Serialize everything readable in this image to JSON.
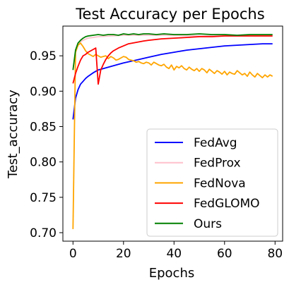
{
  "chart_data": {
    "type": "line",
    "title": "Test Accuracy per Epochs",
    "xlabel": "Epochs",
    "ylabel": "Test_accuracy",
    "xlim": [
      -4,
      83
    ],
    "ylim": [
      0.688,
      0.992
    ],
    "xticks": [
      0,
      20,
      40,
      60,
      80
    ],
    "xtick_labels": [
      "0",
      "20",
      "40",
      "60",
      "80"
    ],
    "yticks": [
      0.7,
      0.75,
      0.8,
      0.85,
      0.9,
      0.95
    ],
    "ytick_labels": [
      "0.70",
      "0.75",
      "0.80",
      "0.85",
      "0.90",
      "0.95"
    ],
    "grid": false,
    "legend_position": "lower-right",
    "series": [
      {
        "name": "FedAvg",
        "color": "#0000ff",
        "x": [
          0,
          1,
          2,
          3,
          4,
          5,
          6,
          8,
          10,
          12,
          15,
          18,
          20,
          25,
          30,
          35,
          40,
          45,
          50,
          55,
          60,
          65,
          70,
          75,
          79
        ],
        "y": [
          0.86,
          0.89,
          0.902,
          0.91,
          0.914,
          0.918,
          0.921,
          0.926,
          0.93,
          0.932,
          0.935,
          0.938,
          0.94,
          0.944,
          0.948,
          0.952,
          0.955,
          0.958,
          0.96,
          0.962,
          0.964,
          0.965,
          0.966,
          0.967,
          0.967
        ]
      },
      {
        "name": "FedProx",
        "color": "#ffc0cb",
        "x": [
          0,
          1,
          2,
          3,
          4,
          6,
          8,
          10,
          15,
          20,
          30,
          40,
          50,
          60,
          70,
          79
        ],
        "y": [
          0.93,
          0.955,
          0.965,
          0.97,
          0.972,
          0.975,
          0.976,
          0.977,
          0.978,
          0.979,
          0.979,
          0.979,
          0.978,
          0.979,
          0.979,
          0.979
        ]
      },
      {
        "name": "FedNova",
        "color": "#ffa500",
        "x": [
          0,
          1,
          2,
          3,
          4,
          5,
          6,
          7,
          8,
          9,
          10,
          11,
          12,
          13,
          14,
          15,
          16,
          17,
          18,
          19,
          20,
          21,
          22,
          23,
          24,
          25,
          26,
          27,
          28,
          29,
          30,
          31,
          32,
          33,
          34,
          35,
          36,
          37,
          38,
          39,
          40,
          41,
          42,
          43,
          44,
          45,
          46,
          47,
          48,
          49,
          50,
          51,
          52,
          53,
          54,
          55,
          56,
          57,
          58,
          59,
          60,
          61,
          62,
          63,
          64,
          65,
          66,
          67,
          68,
          69,
          70,
          71,
          72,
          73,
          74,
          75,
          76,
          77,
          78,
          79
        ],
        "y": [
          0.705,
          0.955,
          0.965,
          0.968,
          0.963,
          0.957,
          0.953,
          0.951,
          0.949,
          0.952,
          0.95,
          0.948,
          0.949,
          0.95,
          0.946,
          0.949,
          0.947,
          0.944,
          0.945,
          0.947,
          0.949,
          0.948,
          0.945,
          0.944,
          0.943,
          0.941,
          0.942,
          0.94,
          0.939,
          0.941,
          0.94,
          0.937,
          0.941,
          0.939,
          0.937,
          0.936,
          0.938,
          0.934,
          0.932,
          0.937,
          0.93,
          0.935,
          0.933,
          0.936,
          0.932,
          0.93,
          0.934,
          0.931,
          0.929,
          0.932,
          0.928,
          0.932,
          0.93,
          0.926,
          0.931,
          0.928,
          0.925,
          0.929,
          0.927,
          0.924,
          0.928,
          0.923,
          0.927,
          0.925,
          0.924,
          0.929,
          0.926,
          0.923,
          0.925,
          0.921,
          0.927,
          0.923,
          0.92,
          0.925,
          0.922,
          0.919,
          0.923,
          0.92,
          0.923,
          0.921
        ]
      },
      {
        "name": "FedGLOMO",
        "color": "#ff0000",
        "x": [
          0,
          1,
          2,
          3,
          4,
          5,
          6,
          7,
          8,
          9,
          10,
          11,
          12,
          13,
          14,
          15,
          16,
          18,
          20,
          22,
          25,
          28,
          30,
          35,
          40,
          45,
          50,
          55,
          60,
          65,
          70,
          75,
          79
        ],
        "y": [
          0.911,
          0.925,
          0.935,
          0.944,
          0.95,
          0.952,
          0.955,
          0.957,
          0.959,
          0.961,
          0.91,
          0.93,
          0.938,
          0.945,
          0.95,
          0.954,
          0.957,
          0.961,
          0.964,
          0.967,
          0.969,
          0.971,
          0.972,
          0.974,
          0.975,
          0.976,
          0.977,
          0.977,
          0.978,
          0.978,
          0.978,
          0.978,
          0.978
        ]
      },
      {
        "name": "Ours",
        "color": "#008000",
        "x": [
          0,
          1,
          2,
          3,
          4,
          5,
          6,
          8,
          10,
          12,
          14,
          16,
          18,
          20,
          22,
          24,
          26,
          28,
          30,
          33,
          36,
          40,
          45,
          50,
          55,
          60,
          65,
          70,
          75,
          79
        ],
        "y": [
          0.93,
          0.958,
          0.968,
          0.972,
          0.975,
          0.977,
          0.978,
          0.979,
          0.98,
          0.979,
          0.98,
          0.98,
          0.979,
          0.981,
          0.98,
          0.981,
          0.98,
          0.981,
          0.981,
          0.98,
          0.981,
          0.98,
          0.98,
          0.981,
          0.98,
          0.98,
          0.979,
          0.98,
          0.98,
          0.98
        ]
      }
    ]
  }
}
